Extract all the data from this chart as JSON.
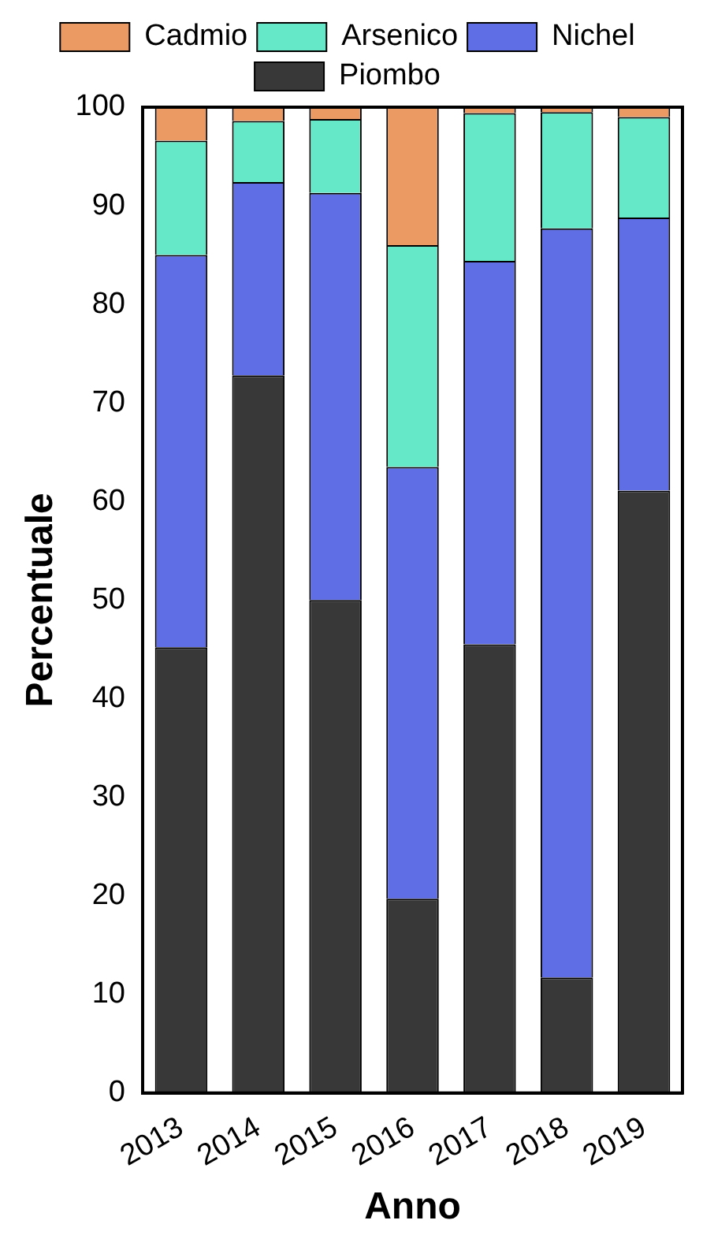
{
  "chart_data": {
    "type": "bar",
    "stacked": true,
    "xlabel": "Anno",
    "ylabel": "Percentuale",
    "categories": [
      "2013",
      "2014",
      "2015",
      "2016",
      "2017",
      "2018",
      "2019"
    ],
    "series": [
      {
        "name": "Piombo",
        "color": "#383838",
        "values": [
          45.2,
          72.8,
          50.0,
          19.7,
          45.5,
          11.7,
          61.1
        ]
      },
      {
        "name": "Nichel",
        "color": "#606ee6",
        "values": [
          39.8,
          19.6,
          41.3,
          43.8,
          38.9,
          76.0,
          27.7
        ]
      },
      {
        "name": "Arsenico",
        "color": "#64e8c8",
        "values": [
          11.6,
          6.2,
          7.5,
          22.5,
          15.0,
          11.8,
          10.2
        ]
      },
      {
        "name": "Cadmio",
        "color": "#ec9a64",
        "values": [
          3.4,
          1.4,
          1.2,
          14.0,
          0.6,
          0.5,
          1.0
        ]
      }
    ],
    "ylim": [
      0,
      100
    ],
    "yticks": [
      0,
      10,
      20,
      30,
      40,
      50,
      60,
      70,
      80,
      90,
      100
    ],
    "grid": false,
    "legend": "top"
  }
}
